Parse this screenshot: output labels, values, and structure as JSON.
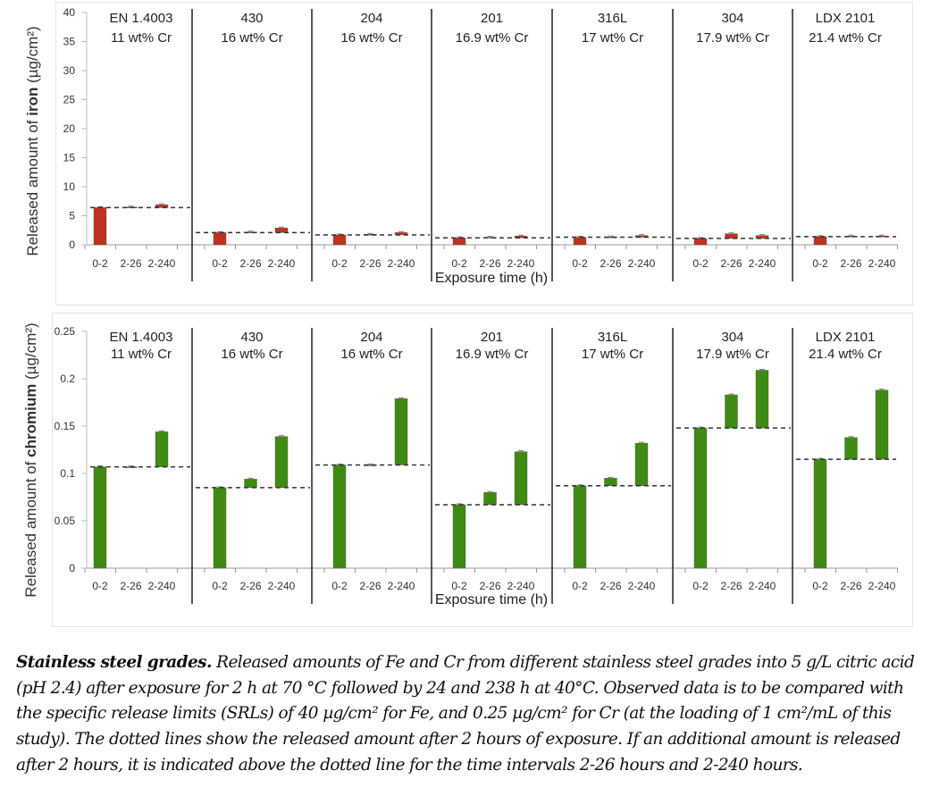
{
  "chart_data": [
    {
      "type": "bar",
      "subtype": "floating-stacked-by-panel",
      "ylabel_prefix": "Released amount of ",
      "ylabel_bold": "iron",
      "ylabel_suffix": " (µg/cm²)",
      "xlabel": "Exposure time (h)",
      "ylim": [
        0,
        40
      ],
      "yticks": [
        0,
        5,
        10,
        15,
        20,
        25,
        30,
        35,
        40
      ],
      "color": "#c0321e",
      "categories": [
        "0-2",
        "2-26",
        "2-240"
      ],
      "panels": [
        {
          "name": "EN 1.4003",
          "sub": "11 wt% Cr",
          "values": [
            6.4,
            6.5,
            6.9
          ]
        },
        {
          "name": "430",
          "sub": "16 wt% Cr",
          "values": [
            2.1,
            2.2,
            2.9
          ]
        },
        {
          "name": "204",
          "sub": "16 wt% Cr",
          "values": [
            1.7,
            1.8,
            2.1
          ]
        },
        {
          "name": "201",
          "sub": "16.9 wt% Cr",
          "values": [
            1.2,
            1.3,
            1.5
          ]
        },
        {
          "name": "316L",
          "sub": "17 wt% Cr",
          "values": [
            1.3,
            1.35,
            1.6
          ]
        },
        {
          "name": "304",
          "sub": "17.9 wt% Cr",
          "values": [
            1.1,
            1.9,
            1.6
          ]
        },
        {
          "name": "LDX 2101",
          "sub": "21.4 wt% Cr",
          "values": [
            1.4,
            1.5,
            1.5
          ]
        }
      ]
    },
    {
      "type": "bar",
      "subtype": "floating-stacked-by-panel",
      "ylabel_prefix": "Released amount of ",
      "ylabel_bold": "chromium",
      "ylabel_suffix": " (µg/cm²)",
      "xlabel": "Exposure time (h)",
      "ylim": [
        0,
        0.25
      ],
      "yticks": [
        "0",
        "0.05",
        "0.1",
        "0.15",
        "0.2",
        "0.25"
      ],
      "color": "#3f8a12",
      "categories": [
        "0-2",
        "2-26",
        "2-240"
      ],
      "panels": [
        {
          "name": "EN 1.4003",
          "sub": "11 wt% Cr",
          "values": [
            0.107,
            0.107,
            0.144
          ]
        },
        {
          "name": "430",
          "sub": "16 wt% Cr",
          "values": [
            0.085,
            0.094,
            0.139
          ]
        },
        {
          "name": "204",
          "sub": "16 wt% Cr",
          "values": [
            0.109,
            0.109,
            0.179
          ]
        },
        {
          "name": "201",
          "sub": "16.9 wt% Cr",
          "values": [
            0.067,
            0.08,
            0.123
          ]
        },
        {
          "name": "316L",
          "sub": "17 wt% Cr",
          "values": [
            0.087,
            0.095,
            0.132
          ]
        },
        {
          "name": "304",
          "sub": "17.9 wt% Cr",
          "values": [
            0.148,
            0.183,
            0.209
          ]
        },
        {
          "name": "LDX 2101",
          "sub": "21.4 wt% Cr",
          "values": [
            0.115,
            0.138,
            0.188
          ]
        }
      ]
    }
  ],
  "caption": {
    "bold": "Stainless steel grades.",
    "text": " Released amounts of Fe and Cr from different stainless steel grades into 5 g/L citric acid (pH 2.4) after exposure for 2 h at 70 °C followed by 24 and 238 h at 40°C. Observed data is to be compared with the specific release limits (SRLs) of 40 µg/cm² for Fe, and 0.25 µg/cm² for Cr (at the loading of 1 cm²/mL of this study). The dotted lines show the released amount after 2 hours of exposure. If an additional amount is released after 2 hours, it is indicated above the dotted line for the time intervals 2-26 hours and 2-240 hours."
  }
}
